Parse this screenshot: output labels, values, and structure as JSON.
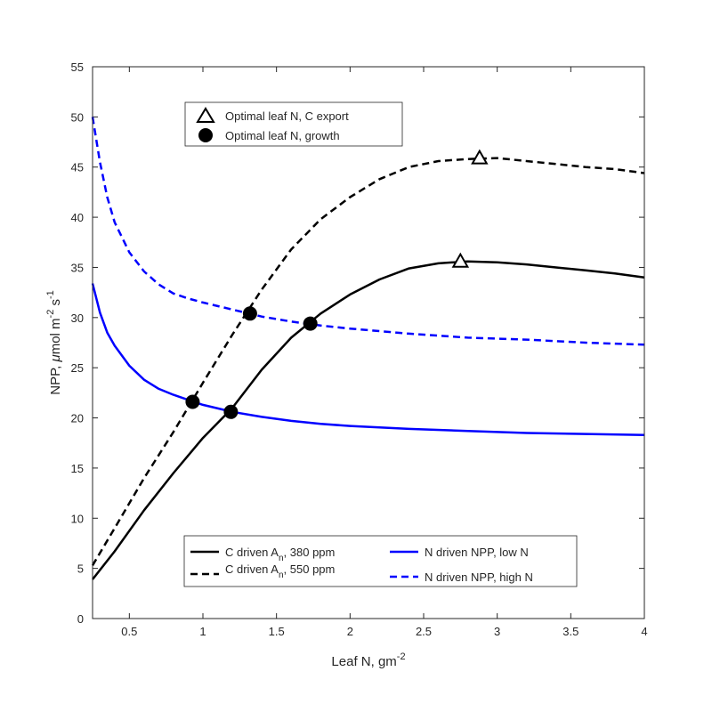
{
  "chart_data": {
    "type": "line",
    "xlabel": "Leaf N, gm",
    "xlabel_sup": "-2",
    "ylabel_parts": [
      "NPP, ",
      "μ",
      "mol m",
      "-2",
      " s",
      "-1"
    ],
    "xlim": [
      0.25,
      4
    ],
    "ylim": [
      0,
      55
    ],
    "x_ticks": [
      0.5,
      1,
      1.5,
      2,
      2.5,
      3,
      3.5,
      4
    ],
    "x_tick_labels": [
      "0.5",
      "1",
      "1.5",
      "2",
      "2.5",
      "3",
      "3.5",
      "4"
    ],
    "y_ticks": [
      0,
      5,
      10,
      15,
      20,
      25,
      30,
      35,
      40,
      45,
      50,
      55
    ],
    "y_tick_labels": [
      "0",
      "5",
      "10",
      "15",
      "20",
      "25",
      "30",
      "35",
      "40",
      "45",
      "50",
      "55"
    ],
    "series": [
      {
        "name": "C driven A_n, 380 ppm",
        "legend_main": "C driven A",
        "legend_sub": "n",
        "legend_tail": ", 380 ppm",
        "color": "#000000",
        "dash": "solid",
        "x": [
          0.25,
          0.4,
          0.6,
          0.8,
          1.0,
          1.2,
          1.4,
          1.6,
          1.8,
          2.0,
          2.2,
          2.4,
          2.6,
          2.8,
          3.0,
          3.2,
          3.4,
          3.6,
          3.8,
          4.0
        ],
        "y": [
          3.9,
          6.7,
          10.8,
          14.5,
          18.0,
          21.0,
          24.8,
          28.0,
          30.4,
          32.3,
          33.8,
          34.9,
          35.4,
          35.6,
          35.5,
          35.3,
          35.0,
          34.7,
          34.4,
          34.0
        ]
      },
      {
        "name": "C driven A_n, 550 ppm",
        "legend_main": "C driven A",
        "legend_sub": "n",
        "legend_tail": ", 550 ppm",
        "color": "#000000",
        "dash": "dashed",
        "x": [
          0.25,
          0.4,
          0.6,
          0.8,
          1.0,
          1.2,
          1.4,
          1.6,
          1.8,
          2.0,
          2.2,
          2.4,
          2.6,
          2.8,
          3.0,
          3.2,
          3.4,
          3.6,
          3.8,
          4.0
        ],
        "y": [
          5.3,
          9.0,
          14.0,
          18.6,
          23.5,
          28.3,
          32.8,
          36.8,
          39.8,
          42.0,
          43.8,
          45.0,
          45.6,
          45.8,
          45.9,
          45.6,
          45.3,
          45.0,
          44.8,
          44.4
        ]
      },
      {
        "name": "N driven NPP, low N",
        "legend_main": "N driven NPP, low N",
        "color": "#0000ff",
        "dash": "solid",
        "x": [
          0.25,
          0.3,
          0.35,
          0.4,
          0.5,
          0.6,
          0.7,
          0.8,
          0.9,
          1.0,
          1.2,
          1.4,
          1.6,
          1.8,
          2.0,
          2.4,
          2.8,
          3.2,
          3.6,
          4.0
        ],
        "y": [
          33.4,
          30.5,
          28.5,
          27.2,
          25.2,
          23.8,
          22.9,
          22.3,
          21.8,
          21.3,
          20.6,
          20.1,
          19.7,
          19.4,
          19.2,
          18.9,
          18.7,
          18.5,
          18.4,
          18.3
        ]
      },
      {
        "name": "N driven NPP, high N",
        "legend_main": "N driven NPP, high N",
        "color": "#0000ff",
        "dash": "dashed",
        "x": [
          0.25,
          0.3,
          0.35,
          0.4,
          0.5,
          0.6,
          0.7,
          0.8,
          0.9,
          1.0,
          1.2,
          1.4,
          1.6,
          1.8,
          2.0,
          2.4,
          2.8,
          3.2,
          3.6,
          4.0
        ],
        "y": [
          50.0,
          45.5,
          42.0,
          39.5,
          36.5,
          34.6,
          33.3,
          32.4,
          31.9,
          31.5,
          30.8,
          30.1,
          29.6,
          29.2,
          28.9,
          28.4,
          28.0,
          27.8,
          27.5,
          27.3
        ]
      }
    ],
    "markers": [
      {
        "name": "Optimal leaf N, C export",
        "shape": "triangle",
        "points": [
          [
            2.75,
            35.6
          ],
          [
            2.88,
            45.9
          ]
        ]
      },
      {
        "name": "Optimal leaf N, growth",
        "shape": "circle",
        "points": [
          [
            0.93,
            21.6
          ],
          [
            1.19,
            20.6
          ],
          [
            1.32,
            30.4
          ],
          [
            1.73,
            29.4
          ]
        ]
      }
    ],
    "legend_top": [
      "Optimal leaf N, C export",
      "Optimal leaf N, growth"
    ],
    "grid": false
  }
}
